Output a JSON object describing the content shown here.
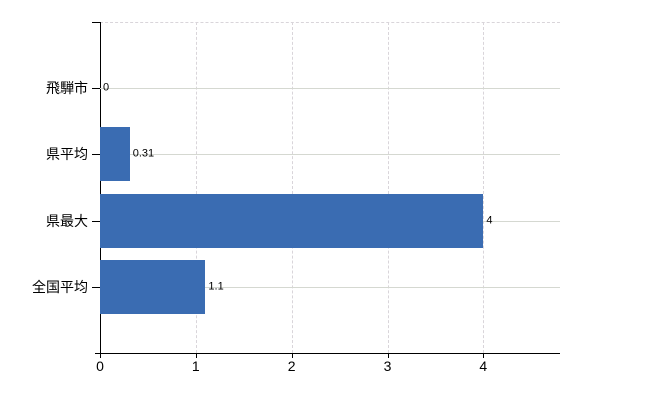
{
  "chart_data": {
    "type": "bar",
    "orientation": "horizontal",
    "title": "",
    "xlabel": "",
    "ylabel": "",
    "categories": [
      "飛騨市",
      "県平均",
      "県最大",
      "全国平均"
    ],
    "values": [
      0,
      0.31,
      4,
      1.1
    ],
    "value_labels": [
      "0",
      "0.31",
      "4",
      "1.1"
    ],
    "xtick_values": [
      0,
      1,
      2,
      3,
      4
    ],
    "xtick_labels": [
      "0",
      "1",
      "2",
      "3",
      "4"
    ],
    "xlim": [
      0,
      4.8
    ],
    "grid": true,
    "legend": false,
    "colors": {
      "bar": "#3a6cb2",
      "grid_horizontal": "#d5d8d1",
      "grid_vertical": "#d9d5da",
      "axis": "#000000",
      "text": "#000000",
      "background": "#ffffff"
    }
  }
}
